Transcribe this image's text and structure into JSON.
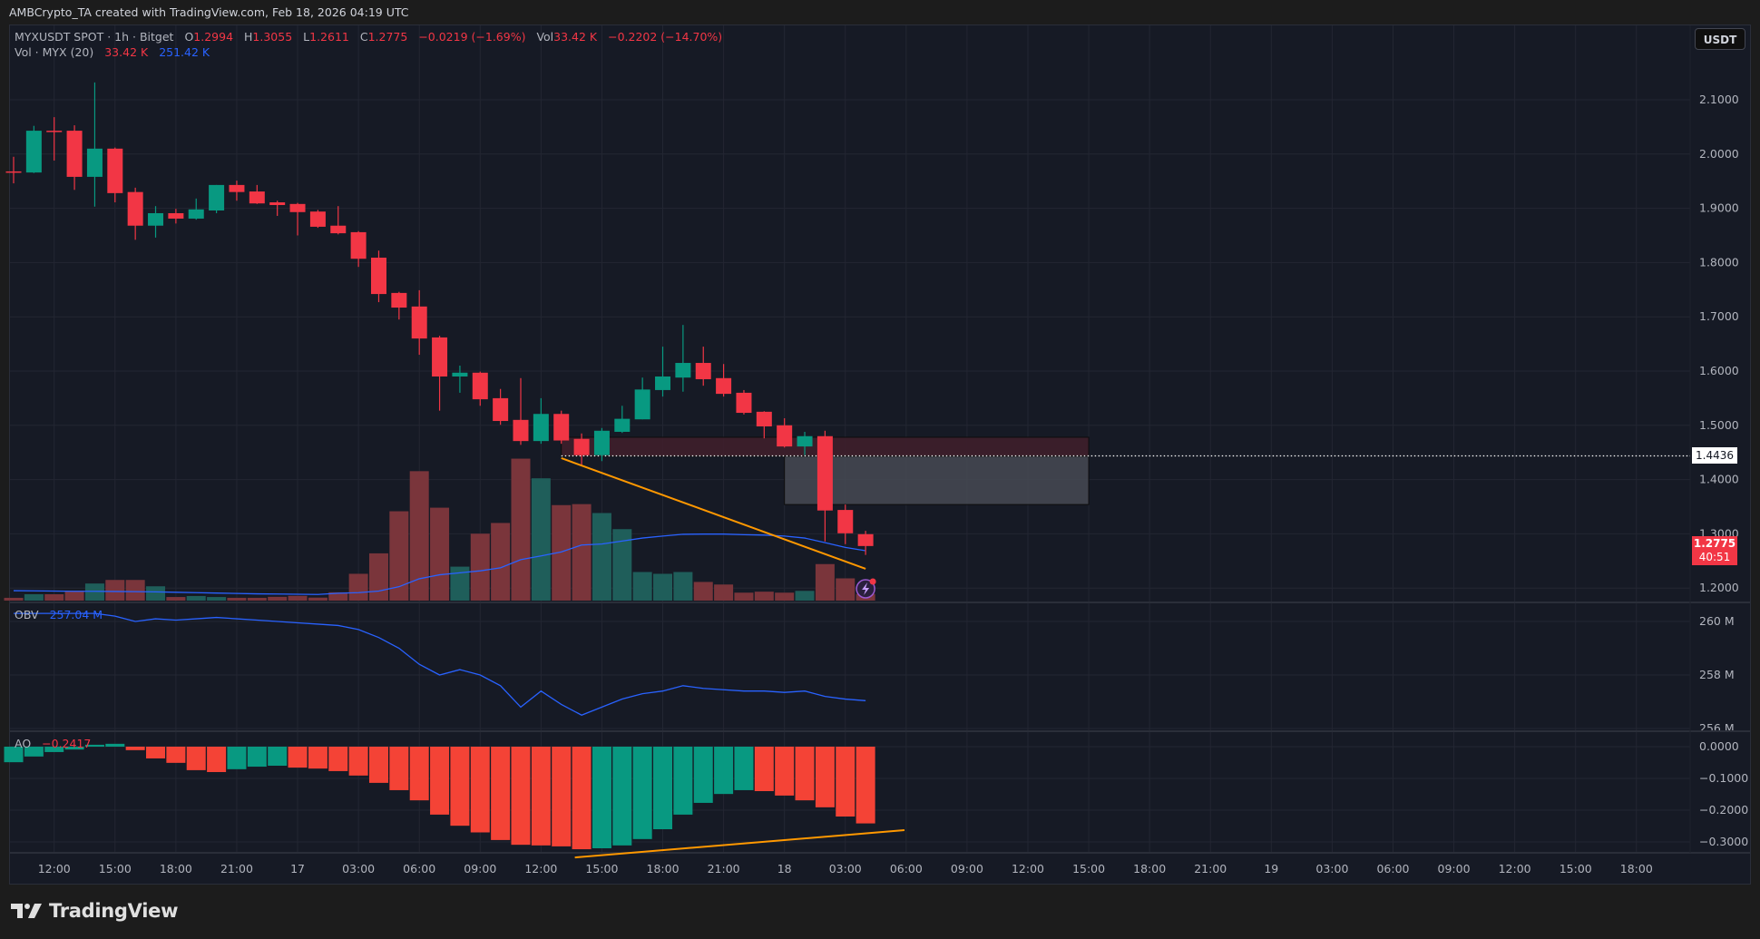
{
  "header": {
    "attribution": "AMBCrypto_TA created with TradingView.com, Feb 18, 2026 04:19 UTC"
  },
  "legend": {
    "symbol": "MYXUSDT SPOT · 1h · Bitget",
    "o_label": "O",
    "o": "1.2994",
    "h_label": "H",
    "h": "1.3055",
    "l_label": "L",
    "l": "1.2611",
    "c_label": "C",
    "c": "1.2775",
    "change": "−0.0219 (−1.69%)",
    "vol_label": "Vol",
    "vol": "33.42 K",
    "vol_change": "−0.2202 (−14.70%)"
  },
  "volume_legend": {
    "label": "Vol · MYX (20)",
    "value": "33.42 K",
    "ma": "251.42 K"
  },
  "obv_legend": {
    "label": "OBV",
    "value": "257.04 M"
  },
  "ao_legend": {
    "label": "AO",
    "value": "−0.2417"
  },
  "currency_button": "USDT",
  "price_tags": {
    "marker": "1.4436",
    "last": "1.2775",
    "countdown": "40:51"
  },
  "brand": "TradingView",
  "colors": {
    "up": "#089981",
    "down": "#f23645",
    "vol_up": "#1f5e5a",
    "vol_down": "#7a353b",
    "ao_up": "#089981",
    "ao_down": "#f44336",
    "ma": "#2962ff",
    "obv": "#2962ff",
    "trendline": "#ff9800",
    "zone_supply": "#3e1f2b",
    "zone_gap": "#474a53"
  },
  "chart_data": {
    "type": "candlestick",
    "interval": "1h",
    "candles": [
      {
        "t": "2026-02-16 10:00",
        "o": 1.968,
        "h": 1.995,
        "l": 1.946,
        "c": 1.966,
        "v": 14
      },
      {
        "t": "2026-02-16 11:00",
        "o": 1.966,
        "h": 2.052,
        "l": 1.965,
        "c": 2.043,
        "v": 32
      },
      {
        "t": "2026-02-16 12:00",
        "o": 2.043,
        "h": 2.068,
        "l": 1.988,
        "c": 2.041,
        "v": 32
      },
      {
        "t": "2026-02-16 13:00",
        "o": 2.043,
        "h": 2.053,
        "l": 1.934,
        "c": 1.958,
        "v": 50
      },
      {
        "t": "2026-02-16 14:00",
        "o": 1.958,
        "h": 2.132,
        "l": 1.903,
        "c": 2.01,
        "v": 86
      },
      {
        "t": "2026-02-16 15:00",
        "o": 2.01,
        "h": 2.012,
        "l": 1.911,
        "c": 1.928,
        "v": 104
      },
      {
        "t": "2026-02-16 16:00",
        "o": 1.93,
        "h": 1.938,
        "l": 1.842,
        "c": 1.868,
        "v": 104
      },
      {
        "t": "2026-02-16 17:00",
        "o": 1.868,
        "h": 1.904,
        "l": 1.846,
        "c": 1.891,
        "v": 72
      },
      {
        "t": "2026-02-16 18:00",
        "o": 1.891,
        "h": 1.899,
        "l": 1.872,
        "c": 1.881,
        "v": 18
      },
      {
        "t": "2026-02-16 19:00",
        "o": 1.881,
        "h": 1.918,
        "l": 1.879,
        "c": 1.898,
        "v": 23
      },
      {
        "t": "2026-02-16 20:00",
        "o": 1.896,
        "h": 1.943,
        "l": 1.891,
        "c": 1.943,
        "v": 18
      },
      {
        "t": "2026-02-16 21:00",
        "o": 1.943,
        "h": 1.951,
        "l": 1.914,
        "c": 1.93,
        "v": 14
      },
      {
        "t": "2026-02-16 22:00",
        "o": 1.931,
        "h": 1.943,
        "l": 1.908,
        "c": 1.909,
        "v": 14
      },
      {
        "t": "2026-02-16 23:00",
        "o": 1.911,
        "h": 1.914,
        "l": 1.886,
        "c": 1.906,
        "v": 19
      },
      {
        "t": "2026-02-17 00:00",
        "o": 1.908,
        "h": 1.91,
        "l": 1.85,
        "c": 1.893,
        "v": 24
      },
      {
        "t": "2026-02-17 01:00",
        "o": 1.894,
        "h": 1.897,
        "l": 1.864,
        "c": 1.866,
        "v": 15
      },
      {
        "t": "2026-02-17 02:00",
        "o": 1.868,
        "h": 1.904,
        "l": 1.852,
        "c": 1.854,
        "v": 42
      },
      {
        "t": "2026-02-17 03:00",
        "o": 1.856,
        "h": 1.858,
        "l": 1.792,
        "c": 1.807,
        "v": 135
      },
      {
        "t": "2026-02-17 04:00",
        "o": 1.809,
        "h": 1.822,
        "l": 1.727,
        "c": 1.742,
        "v": 238
      },
      {
        "t": "2026-02-17 05:00",
        "o": 1.744,
        "h": 1.746,
        "l": 1.695,
        "c": 1.717,
        "v": 450
      },
      {
        "t": "2026-02-17 06:00",
        "o": 1.719,
        "h": 1.749,
        "l": 1.63,
        "c": 1.66,
        "v": 652
      },
      {
        "t": "2026-02-17 07:00",
        "o": 1.662,
        "h": 1.665,
        "l": 1.527,
        "c": 1.59,
        "v": 468
      },
      {
        "t": "2026-02-17 08:00",
        "o": 1.59,
        "h": 1.61,
        "l": 1.56,
        "c": 1.597,
        "v": 171
      },
      {
        "t": "2026-02-17 09:00",
        "o": 1.597,
        "h": 1.599,
        "l": 1.536,
        "c": 1.548,
        "v": 337
      },
      {
        "t": "2026-02-17 10:00",
        "o": 1.55,
        "h": 1.567,
        "l": 1.501,
        "c": 1.508,
        "v": 391
      },
      {
        "t": "2026-02-17 11:00",
        "o": 1.51,
        "h": 1.587,
        "l": 1.464,
        "c": 1.471,
        "v": 715
      },
      {
        "t": "2026-02-17 12:00",
        "o": 1.471,
        "h": 1.55,
        "l": 1.466,
        "c": 1.521,
        "v": 616
      },
      {
        "t": "2026-02-17 13:00",
        "o": 1.521,
        "h": 1.527,
        "l": 1.466,
        "c": 1.472,
        "v": 481
      },
      {
        "t": "2026-02-17 14:00",
        "o": 1.475,
        "h": 1.485,
        "l": 1.426,
        "c": 1.445,
        "v": 486
      },
      {
        "t": "2026-02-17 15:00",
        "o": 1.445,
        "h": 1.495,
        "l": 1.434,
        "c": 1.49,
        "v": 441
      },
      {
        "t": "2026-02-17 16:00",
        "o": 1.488,
        "h": 1.536,
        "l": 1.486,
        "c": 1.512,
        "v": 360
      },
      {
        "t": "2026-02-17 17:00",
        "o": 1.511,
        "h": 1.588,
        "l": 1.511,
        "c": 1.566,
        "v": 144
      },
      {
        "t": "2026-02-17 18:00",
        "o": 1.565,
        "h": 1.645,
        "l": 1.553,
        "c": 1.59,
        "v": 135
      },
      {
        "t": "2026-02-17 19:00",
        "o": 1.588,
        "h": 1.685,
        "l": 1.562,
        "c": 1.615,
        "v": 144
      },
      {
        "t": "2026-02-17 20:00",
        "o": 1.615,
        "h": 1.645,
        "l": 1.573,
        "c": 1.585,
        "v": 94
      },
      {
        "t": "2026-02-17 21:00",
        "o": 1.587,
        "h": 1.613,
        "l": 1.553,
        "c": 1.558,
        "v": 81
      },
      {
        "t": "2026-02-17 22:00",
        "o": 1.56,
        "h": 1.565,
        "l": 1.52,
        "c": 1.523,
        "v": 40
      },
      {
        "t": "2026-02-17 23:00",
        "o": 1.525,
        "h": 1.526,
        "l": 1.476,
        "c": 1.498,
        "v": 45
      },
      {
        "t": "2026-02-18 00:00",
        "o": 1.5,
        "h": 1.513,
        "l": 1.459,
        "c": 1.461,
        "v": 40
      },
      {
        "t": "2026-02-18 01:00",
        "o": 1.461,
        "h": 1.488,
        "l": 1.445,
        "c": 1.48,
        "v": 49
      },
      {
        "t": "2026-02-18 02:00",
        "o": 1.48,
        "h": 1.49,
        "l": 1.286,
        "c": 1.343,
        "v": 184
      },
      {
        "t": "2026-02-18 03:00",
        "o": 1.344,
        "h": 1.354,
        "l": 1.281,
        "c": 1.301,
        "v": 112
      },
      {
        "t": "2026-02-18 04:00",
        "o": 1.2994,
        "h": 1.3055,
        "l": 1.2611,
        "c": 1.2775,
        "v": 33.42
      }
    ],
    "volume_unit": "K",
    "volume_ma": [
      50,
      49,
      48,
      47,
      47,
      46,
      45,
      44,
      42,
      40,
      38,
      36,
      34,
      33,
      32,
      31,
      37,
      40,
      48,
      70,
      110,
      130,
      140,
      150,
      165,
      206,
      225,
      245,
      280,
      285,
      300,
      315,
      325,
      334,
      335,
      335,
      332,
      330,
      325,
      315,
      292,
      268,
      251.42
    ],
    "obv_unit": "M",
    "obv": [
      260.3,
      260.3,
      260.3,
      260.3,
      260.3,
      260.2,
      260.0,
      260.1,
      260.05,
      260.1,
      260.15,
      260.1,
      260.05,
      260.0,
      259.95,
      259.9,
      259.85,
      259.7,
      259.4,
      259.0,
      258.4,
      258.0,
      258.2,
      258.0,
      257.6,
      256.8,
      257.4,
      256.9,
      256.5,
      256.8,
      257.1,
      257.3,
      257.4,
      257.6,
      257.5,
      257.45,
      257.4,
      257.4,
      257.35,
      257.4,
      257.2,
      257.1,
      257.04
    ],
    "ao": [
      -0.049,
      -0.031,
      -0.017,
      -0.009,
      0.006,
      0.009,
      -0.011,
      -0.037,
      -0.051,
      -0.074,
      -0.08,
      -0.071,
      -0.063,
      -0.06,
      -0.066,
      -0.069,
      -0.077,
      -0.091,
      -0.114,
      -0.137,
      -0.169,
      -0.214,
      -0.249,
      -0.27,
      -0.294,
      -0.309,
      -0.311,
      -0.314,
      -0.323,
      -0.32,
      -0.311,
      -0.291,
      -0.26,
      -0.214,
      -0.177,
      -0.149,
      -0.137,
      -0.14,
      -0.154,
      -0.169,
      -0.191,
      -0.22,
      -0.2417
    ],
    "price_axis": {
      "ticks": [
        "2.1000",
        "2.0000",
        "1.9000",
        "1.8000",
        "1.7000",
        "1.6000",
        "1.5000",
        "1.4000",
        "1.3000",
        "1.2000"
      ],
      "range": [
        1.18,
        2.2
      ]
    },
    "obv_axis": {
      "ticks": [
        "260 M",
        "258 M",
        "256 M"
      ],
      "values": [
        260,
        258,
        256
      ]
    },
    "ao_axis": {
      "ticks": [
        "0.0000",
        "−0.1000",
        "−0.2000",
        "−0.3000"
      ],
      "values": [
        0,
        -0.1,
        -0.2,
        -0.3
      ]
    },
    "time_axis": {
      "ticks": [
        {
          "label": "12:00",
          "t": "2026-02-16 12:00"
        },
        {
          "label": "15:00",
          "t": "2026-02-16 15:00"
        },
        {
          "label": "18:00",
          "t": "2026-02-16 18:00"
        },
        {
          "label": "21:00",
          "t": "2026-02-16 21:00"
        },
        {
          "label": "17",
          "t": "2026-02-17 00:00"
        },
        {
          "label": "03:00",
          "t": "2026-02-17 03:00"
        },
        {
          "label": "06:00",
          "t": "2026-02-17 06:00"
        },
        {
          "label": "09:00",
          "t": "2026-02-17 09:00"
        },
        {
          "label": "12:00",
          "t": "2026-02-17 12:00"
        },
        {
          "label": "15:00",
          "t": "2026-02-17 15:00"
        },
        {
          "label": "18:00",
          "t": "2026-02-17 18:00"
        },
        {
          "label": "21:00",
          "t": "2026-02-17 21:00"
        },
        {
          "label": "18",
          "t": "2026-02-18 00:00"
        },
        {
          "label": "03:00",
          "t": "2026-02-18 03:00"
        },
        {
          "label": "06:00",
          "t": "2026-02-18 06:00"
        },
        {
          "label": "09:00",
          "t": "2026-02-18 09:00"
        },
        {
          "label": "12:00",
          "t": "2026-02-18 12:00"
        },
        {
          "label": "15:00",
          "t": "2026-02-18 15:00"
        },
        {
          "label": "18:00",
          "t": "2026-02-18 18:00"
        },
        {
          "label": "21:00",
          "t": "2026-02-18 21:00"
        },
        {
          "label": "19",
          "t": "2026-02-19 00:00"
        },
        {
          "label": "03:00",
          "t": "2026-02-19 03:00"
        },
        {
          "label": "06:00",
          "t": "2026-02-19 06:00"
        },
        {
          "label": "09:00",
          "t": "2026-02-19 09:00"
        },
        {
          "label": "12:00",
          "t": "2026-02-19 12:00"
        },
        {
          "label": "15:00",
          "t": "2026-02-19 15:00"
        },
        {
          "label": "18:00",
          "t": "2026-02-19 18:00"
        }
      ]
    },
    "annotations": {
      "supply_zone": {
        "t1": "2026-02-17 13:00",
        "t2": "2026-02-18 15:00",
        "p1": 1.478,
        "p2": 1.443
      },
      "gap_zone": {
        "t1": "2026-02-18 00:00",
        "t2": "2026-02-18 15:00",
        "p1": 1.443,
        "p2": 1.354
      },
      "marker_line": {
        "t1": "2026-02-17 13:00",
        "price": 1.4436
      },
      "price_trendline": {
        "t1": "2026-02-17 13:00",
        "p1": 1.4395,
        "t2": "2026-02-18 04:00",
        "p2": 1.2355
      },
      "ao_trendline": {
        "t1": "2026-02-17 13:40",
        "v1": -0.349,
        "t2": "2026-02-18 05:55",
        "v2": -0.263
      }
    }
  }
}
